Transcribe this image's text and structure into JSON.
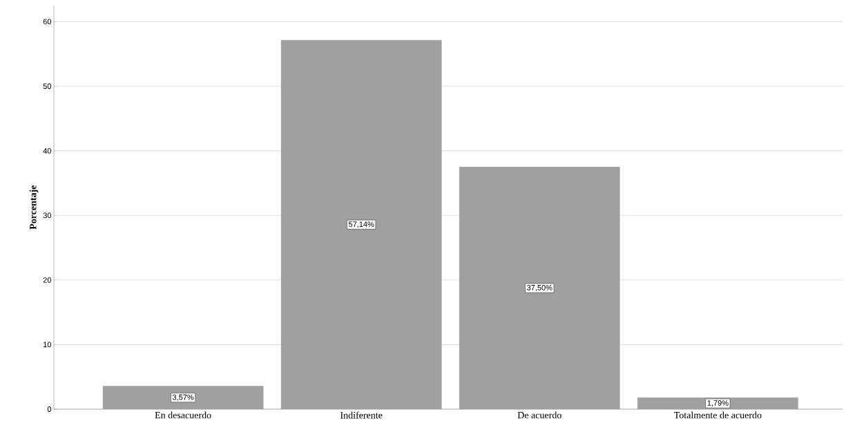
{
  "chart_data": {
    "type": "bar",
    "ylabel": "Porcentaje",
    "categories": [
      "En desacuerdo",
      "Indiferente",
      "De acuerdo",
      "Totalmente de acuerdo"
    ],
    "values": [
      3.57,
      57.14,
      37.5,
      1.79
    ],
    "value_labels": [
      "3,57%",
      "57,14%",
      "37,50%",
      "1,79%"
    ],
    "color": "#a0a0a0",
    "ylim": [
      0,
      62.5
    ],
    "yticks": [
      0,
      10,
      20,
      30,
      40,
      50,
      60
    ],
    "grid": "y"
  }
}
